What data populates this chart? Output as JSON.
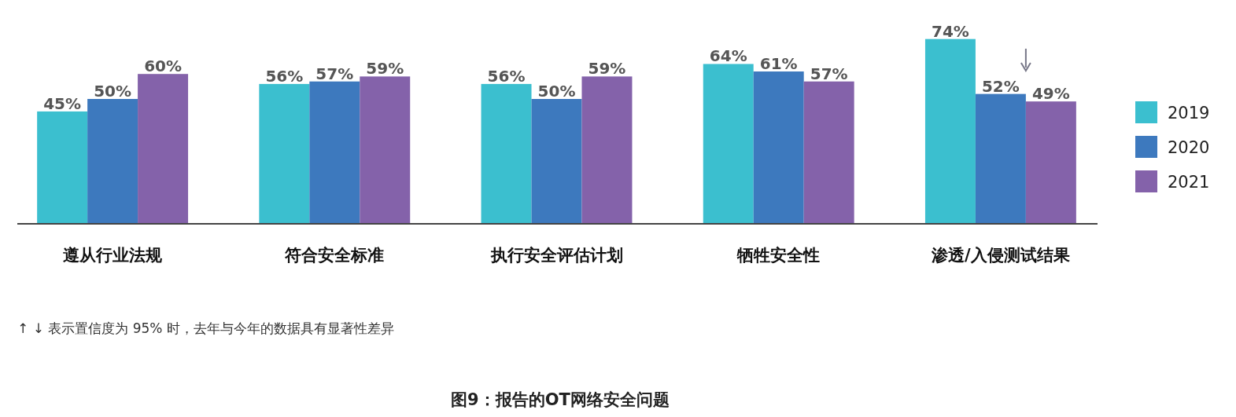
{
  "chart_data": {
    "type": "bar",
    "title": "图9：报告的OT网络安全问题",
    "categories": [
      "遵从行业法规",
      "符合安全标准",
      "执行安全评估计划",
      "牺牲安全性",
      "渗透/入侵测试结果"
    ],
    "series": [
      {
        "name": "2019",
        "color": "#3bbfcf",
        "values": [
          45,
          56,
          56,
          64,
          74
        ],
        "value_labels": [
          "45%",
          "56%",
          "56%",
          "64%",
          "74%"
        ]
      },
      {
        "name": "2020",
        "color": "#3d79be",
        "values": [
          50,
          57,
          50,
          61,
          52
        ],
        "value_labels": [
          "50%",
          "57%",
          "50%",
          "61%",
          "52%"
        ]
      },
      {
        "name": "2021",
        "color": "#8462aa",
        "values": [
          60,
          59,
          59,
          57,
          49
        ],
        "value_labels": [
          "60%",
          "59%",
          "59%",
          "57%",
          "49%"
        ]
      }
    ],
    "annotations": [
      "↑ ↓ 表示置信度为 95% 时，去年与今年的数据具有显著性差异"
    ],
    "legend": "right"
  }
}
